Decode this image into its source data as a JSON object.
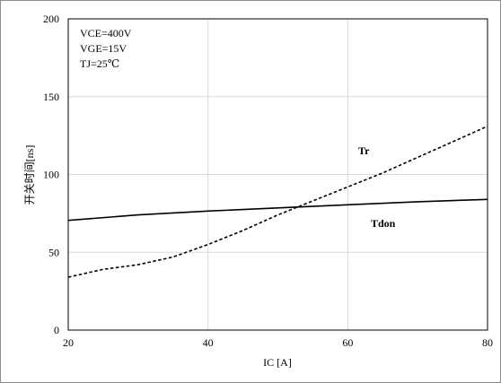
{
  "chart_data": {
    "type": "line",
    "xlabel": "IC [A]",
    "ylabel": "开关时间[ns]",
    "xlim": [
      20,
      80
    ],
    "ylim": [
      0,
      200
    ],
    "xticks": [
      20,
      40,
      60,
      80
    ],
    "yticks": [
      0,
      50,
      100,
      150,
      200
    ],
    "grid": true,
    "annotations": [
      "VCE=400V",
      "VGE=15V",
      "TJ=25℃"
    ],
    "series": [
      {
        "name": "Tdon",
        "style": "solid",
        "color": "#000000",
        "x": [
          20,
          30,
          40,
          50,
          60,
          70,
          80
        ],
        "y": [
          70.5,
          74,
          76.5,
          78.5,
          80.5,
          82.5,
          84
        ]
      },
      {
        "name": "Tr",
        "style": "dashed",
        "color": "#000000",
        "x": [
          20,
          25,
          30,
          35,
          40,
          45,
          50,
          55,
          60,
          65,
          70,
          75,
          80
        ],
        "y": [
          34,
          39,
          42,
          47,
          55,
          64,
          74,
          83,
          92,
          101,
          111,
          121,
          131
        ]
      }
    ]
  }
}
